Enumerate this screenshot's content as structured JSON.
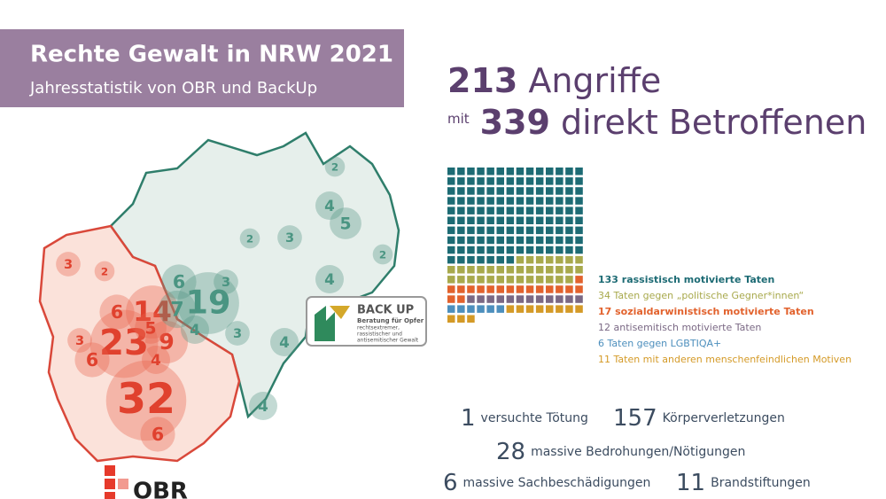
{
  "header": {
    "title": "Rechte Gewalt in NRW 2021",
    "subtitle": "Jahresstatistik von OBR und BackUp"
  },
  "headline": {
    "attacks": 213,
    "attacks_label": "Angriffe",
    "with": "mit",
    "victims": 339,
    "victims_label": "direkt Betroffenen"
  },
  "chart_data": {
    "type": "waffle",
    "categories": [
      "133 rassistisch motivierte Taten",
      "34 Taten gegen „politische Gegner*innen“",
      "17 sozialdarwinistisch motivierte Taten",
      "12 antisemitisch motivierte Taten",
      "6 Taten gegen LGBTIQA+",
      "11 Taten mit anderen menschenfeindlichen Motiven"
    ],
    "values": [
      133,
      34,
      17,
      12,
      6,
      11
    ],
    "colors": [
      "#1d6b74",
      "#a8a94c",
      "#e2622d",
      "#7a6884",
      "#4d8fbd",
      "#d49a27"
    ]
  },
  "stats": [
    {
      "value": 1,
      "label": "versuchte Tötung"
    },
    {
      "value": 157,
      "label": "Körperverletzungen"
    },
    {
      "value": 28,
      "label": "massive Bedrohungen/Nötigungen"
    },
    {
      "value": 6,
      "label": "massive Sachbeschädigungen"
    },
    {
      "value": 11,
      "label": "Brandstiftungen"
    }
  ],
  "map": {
    "obr": [
      32,
      23,
      14,
      9,
      6,
      6,
      6,
      5,
      4,
      3,
      3,
      2
    ],
    "backup": [
      19,
      7,
      6,
      5,
      4,
      4,
      4,
      4,
      4,
      3,
      3,
      3,
      2,
      2,
      2
    ]
  },
  "logos": {
    "backup_name": "BACK UP",
    "backup_line1": "Beratung für Opfer",
    "backup_line2": "rechtsextremer,",
    "backup_line3": "rassistischer und",
    "backup_line4": "antisemitischer Gewalt",
    "obr": "OBR"
  }
}
